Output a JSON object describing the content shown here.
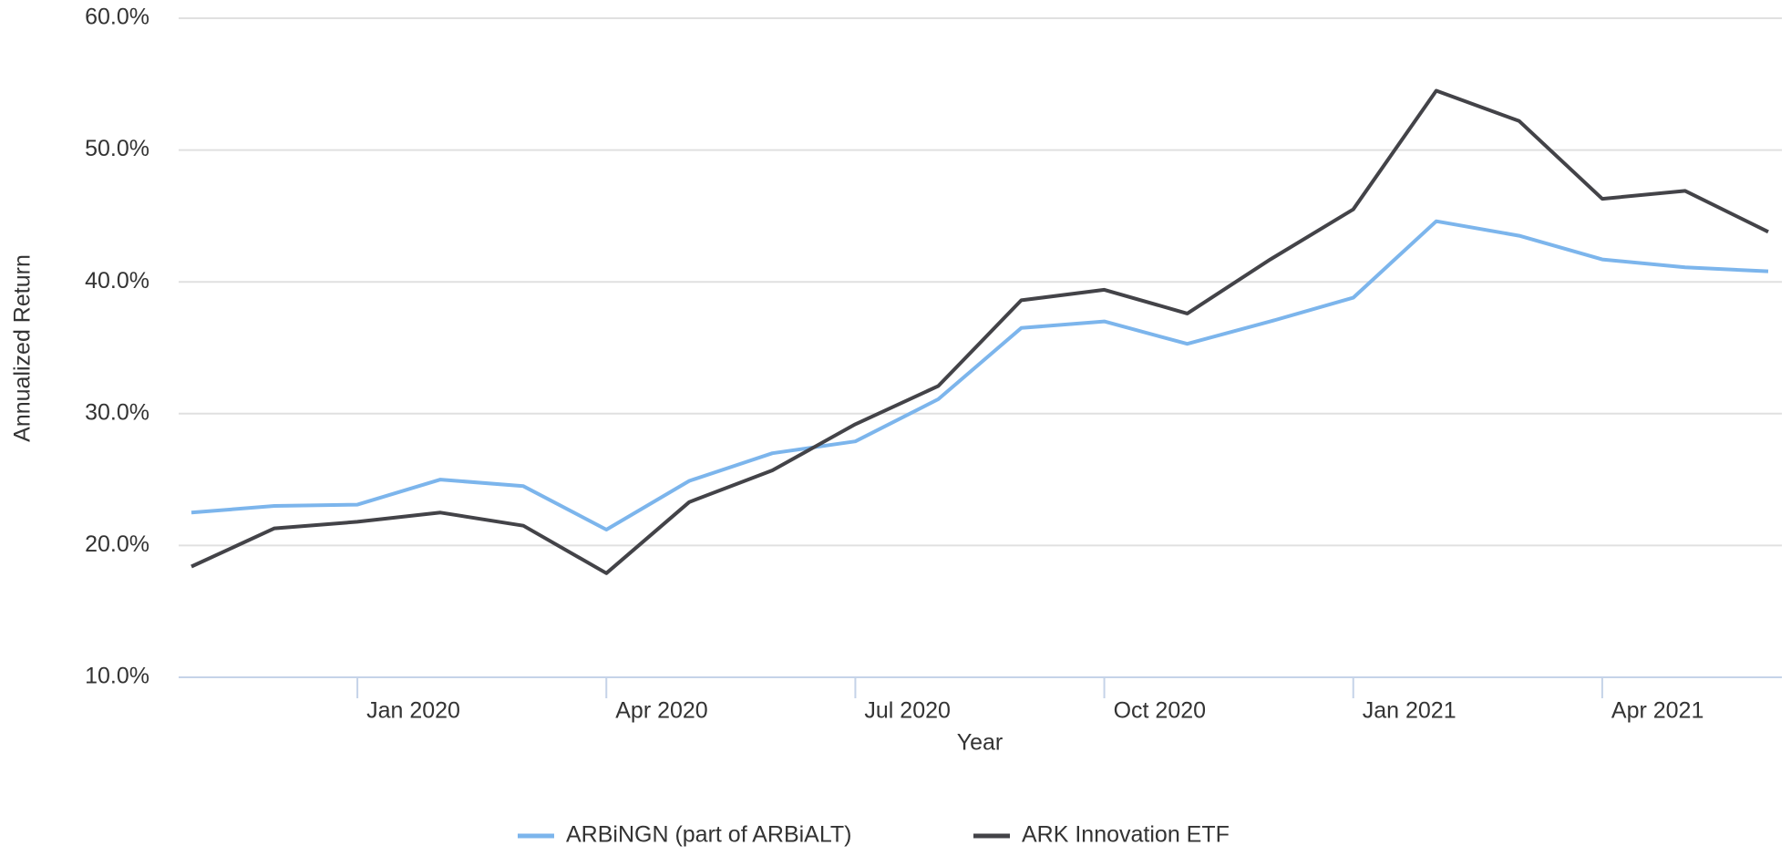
{
  "chart_data": {
    "type": "line",
    "x_label": "Year",
    "y_label": "Annualized Return",
    "x": [
      "2019-11",
      "2019-12",
      "2020-01",
      "2020-02",
      "2020-03",
      "2020-04",
      "2020-05",
      "2020-06",
      "2020-07",
      "2020-08",
      "2020-09",
      "2020-10",
      "2020-11",
      "2020-12",
      "2021-01",
      "2021-02",
      "2021-03",
      "2021-04",
      "2021-05",
      "2021-06"
    ],
    "series": [
      {
        "name": "ARBiNGN (part of ARBiALT)",
        "color": "#7cb5ec",
        "values": [
          22.5,
          23.0,
          23.1,
          25.0,
          24.5,
          21.2,
          24.9,
          27.0,
          27.9,
          31.1,
          36.5,
          37.0,
          35.3,
          37.0,
          38.8,
          44.6,
          43.5,
          41.7,
          41.1,
          40.8
        ]
      },
      {
        "name": "ARK Innovation ETF",
        "color": "#434348",
        "values": [
          18.4,
          21.3,
          21.8,
          22.5,
          21.5,
          17.9,
          23.3,
          25.7,
          29.2,
          32.1,
          38.6,
          39.4,
          37.6,
          41.7,
          45.5,
          54.5,
          52.2,
          46.3,
          46.9,
          43.8
        ]
      }
    ],
    "xlim": [
      "2019-11",
      "2021-06"
    ],
    "xticks": [
      {
        "value": "2020-01",
        "label": "Jan 2020"
      },
      {
        "value": "2020-04",
        "label": "Apr 2020"
      },
      {
        "value": "2020-07",
        "label": "Jul 2020"
      },
      {
        "value": "2020-10",
        "label": "Oct 2020"
      },
      {
        "value": "2021-01",
        "label": "Jan 2021"
      },
      {
        "value": "2021-04",
        "label": "Apr 2021"
      }
    ],
    "ylim": [
      10,
      60
    ],
    "yticks": [
      {
        "value": 10,
        "label": "10.0%"
      },
      {
        "value": 20,
        "label": "20.0%"
      },
      {
        "value": 30,
        "label": "30.0%"
      },
      {
        "value": 40,
        "label": "40.0%"
      },
      {
        "value": 50,
        "label": "50.0%"
      },
      {
        "value": 60,
        "label": "60.0%"
      }
    ],
    "grid": true,
    "legend": "bottom"
  }
}
